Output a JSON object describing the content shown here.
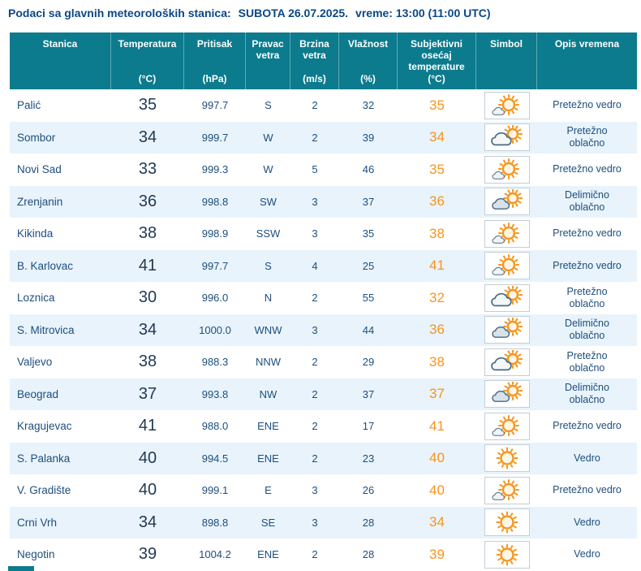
{
  "title": {
    "prefix": "Podaci sa glavnih meteoroloških stanica:",
    "date": "SUBOTA 26.07.2025.",
    "time": "vreme: 13:00 (11:00 UTC)"
  },
  "theme": {
    "header_bg": "#0c7b8d",
    "row_alt_bg": "#e8f3fb",
    "title_color": "#0a4787",
    "text_color": "#1d4e7e",
    "temperature_color": "#233953",
    "feels_like_color": "#f7941e",
    "sun_icon_color": "#f7941e",
    "cloud_icon_color": "#4a6b85"
  },
  "table": {
    "columns": [
      {
        "label": "Stanica",
        "unit": ""
      },
      {
        "label": "Temperatura",
        "unit": "(°C)"
      },
      {
        "label": "Pritisak",
        "unit": "(hPa)"
      },
      {
        "label": "Pravac vetra",
        "unit": ""
      },
      {
        "label": "Brzina vetra",
        "unit": "(m/s)"
      },
      {
        "label": "Vlažnost",
        "unit": "(%)"
      },
      {
        "label": "Subjektivni osećaj temperature",
        "unit": "(°C)"
      },
      {
        "label": "Simbol",
        "unit": ""
      },
      {
        "label": "Opis vremena",
        "unit": ""
      }
    ],
    "rows": [
      {
        "station": "Palić",
        "temperature": "35",
        "pressure": "997.7",
        "wind_direction": "S",
        "wind_speed": "2",
        "humidity": "32",
        "feels_like": "35",
        "symbol": "mostly-clear",
        "description": "Pretežno vedro"
      },
      {
        "station": "Sombor",
        "temperature": "34",
        "pressure": "999.7",
        "wind_direction": "W",
        "wind_speed": "2",
        "humidity": "39",
        "feels_like": "34",
        "symbol": "mostly-cloudy",
        "description": "Pretežno oblačno"
      },
      {
        "station": "Novi Sad",
        "temperature": "33",
        "pressure": "999.3",
        "wind_direction": "W",
        "wind_speed": "5",
        "humidity": "46",
        "feels_like": "35",
        "symbol": "mostly-clear",
        "description": "Pretežno vedro"
      },
      {
        "station": "Zrenjanin",
        "temperature": "36",
        "pressure": "998.8",
        "wind_direction": "SW",
        "wind_speed": "3",
        "humidity": "37",
        "feels_like": "36",
        "symbol": "partly-cloudy",
        "description": "Delimično oblačno"
      },
      {
        "station": "Kikinda",
        "temperature": "38",
        "pressure": "998.9",
        "wind_direction": "SSW",
        "wind_speed": "3",
        "humidity": "35",
        "feels_like": "38",
        "symbol": "mostly-clear",
        "description": "Pretežno vedro"
      },
      {
        "station": "B. Karlovac",
        "temperature": "41",
        "pressure": "997.7",
        "wind_direction": "S",
        "wind_speed": "4",
        "humidity": "25",
        "feels_like": "41",
        "symbol": "mostly-clear",
        "description": "Pretežno vedro"
      },
      {
        "station": "Loznica",
        "temperature": "30",
        "pressure": "996.0",
        "wind_direction": "N",
        "wind_speed": "2",
        "humidity": "55",
        "feels_like": "32",
        "symbol": "mostly-cloudy",
        "description": "Pretežno oblačno"
      },
      {
        "station": "S. Mitrovica",
        "temperature": "34",
        "pressure": "1000.0",
        "wind_direction": "WNW",
        "wind_speed": "3",
        "humidity": "44",
        "feels_like": "36",
        "symbol": "partly-cloudy",
        "description": "Delimično oblačno"
      },
      {
        "station": "Valjevo",
        "temperature": "38",
        "pressure": "988.3",
        "wind_direction": "NNW",
        "wind_speed": "2",
        "humidity": "29",
        "feels_like": "38",
        "symbol": "mostly-cloudy",
        "description": "Pretežno oblačno"
      },
      {
        "station": "Beograd",
        "temperature": "37",
        "pressure": "993.8",
        "wind_direction": "NW",
        "wind_speed": "2",
        "humidity": "37",
        "feels_like": "37",
        "symbol": "partly-cloudy",
        "description": "Delimično oblačno"
      },
      {
        "station": "Kragujevac",
        "temperature": "41",
        "pressure": "988.0",
        "wind_direction": "ENE",
        "wind_speed": "2",
        "humidity": "17",
        "feels_like": "41",
        "symbol": "mostly-clear",
        "description": "Pretežno vedro"
      },
      {
        "station": "S. Palanka",
        "temperature": "40",
        "pressure": "994.5",
        "wind_direction": "ENE",
        "wind_speed": "2",
        "humidity": "23",
        "feels_like": "40",
        "symbol": "clear",
        "description": "Vedro"
      },
      {
        "station": "V. Gradište",
        "temperature": "40",
        "pressure": "999.1",
        "wind_direction": "E",
        "wind_speed": "3",
        "humidity": "26",
        "feels_like": "40",
        "symbol": "mostly-clear",
        "description": "Pretežno vedro"
      },
      {
        "station": "Crni Vrh",
        "temperature": "34",
        "pressure": "898.8",
        "wind_direction": "SE",
        "wind_speed": "3",
        "humidity": "28",
        "feels_like": "34",
        "symbol": "clear",
        "description": "Vedro"
      },
      {
        "station": "Negotin",
        "temperature": "39",
        "pressure": "1004.2",
        "wind_direction": "ENE",
        "wind_speed": "2",
        "humidity": "28",
        "feels_like": "39",
        "symbol": "clear",
        "description": "Vedro"
      }
    ]
  }
}
